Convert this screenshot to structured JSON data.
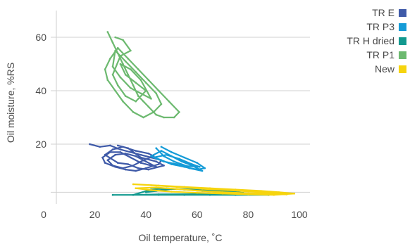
{
  "chart_data": {
    "type": "scatter",
    "title": "",
    "xlabel": "Oil temperature, ˚C",
    "ylabel": "Oil moisture, %RS",
    "xlim": [
      0,
      105
    ],
    "ylim": [
      -3,
      65
    ],
    "x_ticks": [
      0,
      20,
      40,
      60,
      80,
      100
    ],
    "y_ticks": [
      20,
      40,
      60
    ],
    "grid": "horizontal",
    "legend_position": "top-right",
    "series": [
      {
        "name": "TR E",
        "color": "#3f5aa8",
        "points": [
          [
            18,
            20
          ],
          [
            22,
            19
          ],
          [
            26,
            19.5
          ],
          [
            30,
            18
          ],
          [
            34,
            17
          ],
          [
            38,
            16
          ],
          [
            42,
            15
          ],
          [
            46,
            14
          ],
          [
            45,
            12.5
          ],
          [
            40,
            11
          ],
          [
            36,
            10
          ],
          [
            32,
            10.5
          ],
          [
            28,
            11.5
          ],
          [
            24,
            13
          ],
          [
            23,
            15
          ],
          [
            26,
            17
          ],
          [
            30,
            17
          ],
          [
            34,
            15
          ],
          [
            38,
            13
          ],
          [
            42,
            12
          ],
          [
            44,
            11.5
          ],
          [
            40,
            13.5
          ],
          [
            36,
            15.5
          ],
          [
            32,
            16.5
          ],
          [
            28,
            16
          ],
          [
            25,
            14
          ],
          [
            27,
            12
          ],
          [
            31,
            11
          ],
          [
            35,
            12
          ],
          [
            39,
            14
          ],
          [
            43,
            15.5
          ],
          [
            41,
            16.5
          ],
          [
            36,
            17.5
          ],
          [
            31,
            19
          ],
          [
            27,
            18
          ],
          [
            24,
            16
          ],
          [
            29,
            13
          ],
          [
            33,
            12.5
          ],
          [
            37,
            11
          ],
          [
            41,
            10.5
          ],
          [
            47,
            12
          ],
          [
            44,
            13.5
          ],
          [
            38,
            15
          ],
          [
            33,
            18.5
          ],
          [
            29,
            19.5
          ]
        ]
      },
      {
        "name": "TR P3",
        "color": "#149bd7",
        "points": [
          [
            46,
            19
          ],
          [
            50,
            17
          ],
          [
            55,
            15
          ],
          [
            60,
            13
          ],
          [
            63,
            11
          ],
          [
            60,
            10.5
          ],
          [
            55,
            11.5
          ],
          [
            50,
            12.5
          ],
          [
            46,
            14
          ],
          [
            42,
            15.5
          ],
          [
            46,
            17.5
          ],
          [
            50,
            15.5
          ],
          [
            54,
            13.5
          ],
          [
            58,
            12
          ],
          [
            62,
            10
          ],
          [
            57,
            11
          ],
          [
            52,
            12.5
          ],
          [
            47,
            13.5
          ],
          [
            43,
            15
          ],
          [
            48,
            16
          ],
          [
            53,
            14.5
          ],
          [
            58,
            12.5
          ],
          [
            61,
            11.5
          ],
          [
            56,
            11.8
          ],
          [
            51,
            13.5
          ],
          [
            47,
            15.5
          ],
          [
            44,
            18.5
          ]
        ]
      },
      {
        "name": "TR H dried",
        "color": "#12998f",
        "points": [
          [
            27,
            1
          ],
          [
            35,
            1
          ],
          [
            45,
            1
          ],
          [
            55,
            1
          ],
          [
            65,
            1
          ],
          [
            75,
            1
          ],
          [
            88,
            1
          ],
          [
            75,
            1.2
          ],
          [
            60,
            1.3
          ],
          [
            45,
            1.2
          ],
          [
            35,
            1
          ],
          [
            42,
            3
          ],
          [
            48,
            3.5
          ],
          [
            55,
            3
          ],
          [
            62,
            2.5
          ],
          [
            70,
            2
          ],
          [
            78,
            1.8
          ],
          [
            70,
            2.6
          ],
          [
            60,
            3
          ],
          [
            50,
            3.2
          ],
          [
            44,
            2.5
          ],
          [
            40,
            2
          ]
        ]
      },
      {
        "name": "TR P1",
        "color": "#6cb96f",
        "points": [
          [
            25,
            62
          ],
          [
            27,
            58
          ],
          [
            29,
            54
          ],
          [
            31,
            50
          ],
          [
            33,
            46
          ],
          [
            35,
            42
          ],
          [
            37,
            38
          ],
          [
            39,
            36
          ],
          [
            41,
            34
          ],
          [
            44,
            31
          ],
          [
            47,
            30
          ],
          [
            51,
            30
          ],
          [
            53,
            32
          ],
          [
            49,
            36
          ],
          [
            45,
            40
          ],
          [
            41,
            44
          ],
          [
            37,
            48
          ],
          [
            33,
            52
          ],
          [
            29,
            56
          ],
          [
            26,
            52
          ],
          [
            24,
            48
          ],
          [
            25,
            44
          ],
          [
            28,
            40
          ],
          [
            31,
            36
          ],
          [
            35,
            32
          ],
          [
            39,
            30
          ],
          [
            43,
            32
          ],
          [
            46,
            35
          ],
          [
            44,
            39
          ],
          [
            40,
            43
          ],
          [
            36,
            47
          ],
          [
            32,
            51
          ],
          [
            28,
            55
          ],
          [
            27,
            49
          ],
          [
            30,
            45
          ],
          [
            34,
            41
          ],
          [
            38,
            39
          ],
          [
            42,
            37
          ],
          [
            38,
            44
          ],
          [
            34,
            48
          ],
          [
            30,
            50
          ],
          [
            32,
            46
          ],
          [
            36,
            43
          ],
          [
            40,
            40
          ],
          [
            36,
            36
          ],
          [
            32,
            38
          ],
          [
            29,
            42
          ],
          [
            27,
            46
          ],
          [
            30,
            53
          ],
          [
            34,
            55
          ],
          [
            31,
            59
          ],
          [
            28,
            60
          ]
        ]
      },
      {
        "name": "New",
        "color": "#f6d40e",
        "points": [
          [
            35,
            5
          ],
          [
            45,
            4.5
          ],
          [
            55,
            4
          ],
          [
            65,
            3.5
          ],
          [
            75,
            3
          ],
          [
            85,
            2.5
          ],
          [
            92,
            2
          ],
          [
            98,
            1.5
          ],
          [
            90,
            1
          ],
          [
            80,
            1.2
          ],
          [
            70,
            1.5
          ],
          [
            60,
            1.8
          ],
          [
            50,
            2.2
          ],
          [
            42,
            2.8
          ],
          [
            36,
            3.5
          ],
          [
            44,
            3.8
          ],
          [
            52,
            3.2
          ],
          [
            60,
            2.6
          ],
          [
            70,
            2
          ],
          [
            80,
            1.6
          ],
          [
            95,
            1.2
          ],
          [
            85,
            2
          ],
          [
            72,
            2.8
          ],
          [
            62,
            3.3
          ],
          [
            52,
            4
          ],
          [
            42,
            4.6
          ]
        ]
      }
    ]
  }
}
